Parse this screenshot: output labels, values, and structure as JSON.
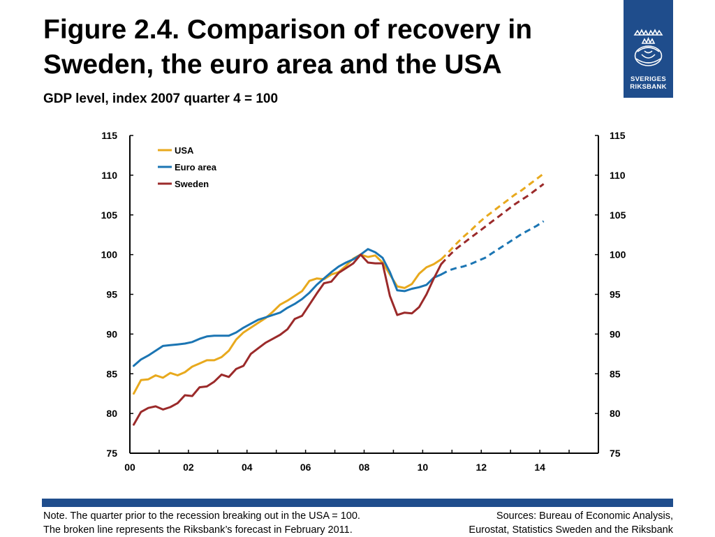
{
  "header": {
    "title": "Figure 2.4. Comparison of recovery in Sweden, the euro area and the USA",
    "subtitle": "GDP level, index 2007 quarter 4 = 100"
  },
  "logo": {
    "text": "SVERIGES\nRIKSBANK",
    "icon": "crown-emblem-icon"
  },
  "footer": {
    "note": "Note. The quarter prior to the recession breaking out in the USA = 100.\nThe broken line represents the Riksbank’s forecast in February 2011.",
    "sources": "Sources: Bureau of Economic Analysis,\nEurostat, Statistics Sweden and the Riksbank"
  },
  "colors": {
    "usa": "#e8a91d",
    "euro": "#1b75b3",
    "sweden": "#9b2a2a",
    "brand": "#1f4d8c"
  },
  "chart_data": {
    "type": "line",
    "title": "",
    "xlabel": "",
    "ylabel": "",
    "xlim": [
      2000,
      2016
    ],
    "ylim": [
      75,
      115
    ],
    "x_ticks": [
      {
        "value": 2000,
        "label": "00"
      },
      {
        "value": 2002,
        "label": "02"
      },
      {
        "value": 2004,
        "label": "04"
      },
      {
        "value": 2006,
        "label": "06"
      },
      {
        "value": 2008,
        "label": "08"
      },
      {
        "value": 2010,
        "label": "10"
      },
      {
        "value": 2012,
        "label": "12"
      },
      {
        "value": 2014,
        "label": "14"
      }
    ],
    "y_ticks": [
      75,
      80,
      85,
      90,
      95,
      100,
      105,
      110,
      115
    ],
    "grid": false,
    "legend_position": "top-left",
    "series": [
      {
        "name": "USA",
        "color": "#e8a91d",
        "actual": [
          [
            2000.13,
            82.5
          ],
          [
            2000.38,
            84.2
          ],
          [
            2000.63,
            84.3
          ],
          [
            2000.88,
            84.8
          ],
          [
            2001.13,
            84.5
          ],
          [
            2001.38,
            85.1
          ],
          [
            2001.63,
            84.8
          ],
          [
            2001.88,
            85.2
          ],
          [
            2002.13,
            85.9
          ],
          [
            2002.38,
            86.3
          ],
          [
            2002.63,
            86.7
          ],
          [
            2002.88,
            86.7
          ],
          [
            2003.13,
            87.1
          ],
          [
            2003.38,
            87.9
          ],
          [
            2003.63,
            89.3
          ],
          [
            2003.88,
            90.2
          ],
          [
            2004.13,
            90.8
          ],
          [
            2004.38,
            91.4
          ],
          [
            2004.63,
            92.0
          ],
          [
            2004.88,
            92.8
          ],
          [
            2005.13,
            93.7
          ],
          [
            2005.38,
            94.2
          ],
          [
            2005.63,
            94.8
          ],
          [
            2005.88,
            95.4
          ],
          [
            2006.13,
            96.7
          ],
          [
            2006.38,
            97.0
          ],
          [
            2006.63,
            96.9
          ],
          [
            2006.88,
            97.5
          ],
          [
            2007.13,
            97.8
          ],
          [
            2007.38,
            98.6
          ],
          [
            2007.63,
            99.5
          ],
          [
            2007.88,
            100.0
          ],
          [
            2008.13,
            99.7
          ],
          [
            2008.38,
            99.9
          ],
          [
            2008.63,
            99.0
          ],
          [
            2008.88,
            97.5
          ],
          [
            2009.13,
            96.0
          ],
          [
            2009.38,
            95.8
          ],
          [
            2009.63,
            96.3
          ],
          [
            2009.88,
            97.6
          ],
          [
            2010.13,
            98.4
          ],
          [
            2010.38,
            98.8
          ],
          [
            2010.63,
            99.4
          ]
        ],
        "forecast": [
          [
            2010.63,
            99.4
          ],
          [
            2010.88,
            100.3
          ],
          [
            2011.13,
            101.3
          ],
          [
            2011.38,
            102.2
          ],
          [
            2011.63,
            103.0
          ],
          [
            2011.88,
            103.9
          ],
          [
            2012.13,
            104.7
          ],
          [
            2012.38,
            105.4
          ],
          [
            2012.63,
            106.1
          ],
          [
            2012.88,
            106.8
          ],
          [
            2013.13,
            107.5
          ],
          [
            2013.38,
            108.1
          ],
          [
            2013.63,
            108.8
          ],
          [
            2013.88,
            109.5
          ],
          [
            2014.13,
            110.2
          ]
        ]
      },
      {
        "name": "Euro area",
        "color": "#1b75b3",
        "actual": [
          [
            2000.13,
            86.0
          ],
          [
            2000.38,
            86.8
          ],
          [
            2000.63,
            87.3
          ],
          [
            2000.88,
            87.9
          ],
          [
            2001.13,
            88.5
          ],
          [
            2001.38,
            88.6
          ],
          [
            2001.63,
            88.7
          ],
          [
            2001.88,
            88.8
          ],
          [
            2002.13,
            89.0
          ],
          [
            2002.38,
            89.4
          ],
          [
            2002.63,
            89.7
          ],
          [
            2002.88,
            89.8
          ],
          [
            2003.13,
            89.8
          ],
          [
            2003.38,
            89.8
          ],
          [
            2003.63,
            90.2
          ],
          [
            2003.88,
            90.8
          ],
          [
            2004.13,
            91.3
          ],
          [
            2004.38,
            91.8
          ],
          [
            2004.63,
            92.1
          ],
          [
            2004.88,
            92.4
          ],
          [
            2005.13,
            92.7
          ],
          [
            2005.38,
            93.3
          ],
          [
            2005.63,
            93.8
          ],
          [
            2005.88,
            94.4
          ],
          [
            2006.13,
            95.2
          ],
          [
            2006.38,
            96.2
          ],
          [
            2006.63,
            97.0
          ],
          [
            2006.88,
            97.8
          ],
          [
            2007.13,
            98.5
          ],
          [
            2007.38,
            99.0
          ],
          [
            2007.63,
            99.4
          ],
          [
            2007.88,
            100.0
          ],
          [
            2008.13,
            100.7
          ],
          [
            2008.38,
            100.3
          ],
          [
            2008.63,
            99.6
          ],
          [
            2008.88,
            97.8
          ],
          [
            2009.13,
            95.5
          ],
          [
            2009.38,
            95.4
          ],
          [
            2009.63,
            95.7
          ],
          [
            2009.88,
            95.9
          ],
          [
            2010.13,
            96.2
          ],
          [
            2010.38,
            97.1
          ],
          [
            2010.63,
            97.5
          ]
        ],
        "forecast": [
          [
            2010.63,
            97.5
          ],
          [
            2010.88,
            98.0
          ],
          [
            2011.13,
            98.3
          ],
          [
            2011.38,
            98.5
          ],
          [
            2011.63,
            98.8
          ],
          [
            2011.88,
            99.2
          ],
          [
            2012.13,
            99.6
          ],
          [
            2012.38,
            100.2
          ],
          [
            2012.63,
            100.8
          ],
          [
            2012.88,
            101.4
          ],
          [
            2013.13,
            102.0
          ],
          [
            2013.38,
            102.6
          ],
          [
            2013.63,
            103.1
          ],
          [
            2013.88,
            103.6
          ],
          [
            2014.13,
            104.2
          ]
        ]
      },
      {
        "name": "Sweden",
        "color": "#9b2a2a",
        "actual": [
          [
            2000.13,
            78.6
          ],
          [
            2000.38,
            80.2
          ],
          [
            2000.63,
            80.7
          ],
          [
            2000.88,
            80.9
          ],
          [
            2001.13,
            80.5
          ],
          [
            2001.38,
            80.8
          ],
          [
            2001.63,
            81.3
          ],
          [
            2001.88,
            82.3
          ],
          [
            2002.13,
            82.2
          ],
          [
            2002.38,
            83.3
          ],
          [
            2002.63,
            83.4
          ],
          [
            2002.88,
            84.0
          ],
          [
            2003.13,
            84.9
          ],
          [
            2003.38,
            84.6
          ],
          [
            2003.63,
            85.6
          ],
          [
            2003.88,
            86.0
          ],
          [
            2004.13,
            87.5
          ],
          [
            2004.38,
            88.2
          ],
          [
            2004.63,
            88.9
          ],
          [
            2004.88,
            89.4
          ],
          [
            2005.13,
            89.9
          ],
          [
            2005.38,
            90.6
          ],
          [
            2005.63,
            91.9
          ],
          [
            2005.88,
            92.3
          ],
          [
            2006.13,
            93.7
          ],
          [
            2006.38,
            95.1
          ],
          [
            2006.63,
            96.4
          ],
          [
            2006.88,
            96.6
          ],
          [
            2007.13,
            97.7
          ],
          [
            2007.38,
            98.3
          ],
          [
            2007.63,
            98.9
          ],
          [
            2007.88,
            100.0
          ],
          [
            2008.13,
            99.0
          ],
          [
            2008.38,
            98.9
          ],
          [
            2008.63,
            98.9
          ],
          [
            2008.88,
            94.8
          ],
          [
            2009.13,
            92.4
          ],
          [
            2009.38,
            92.7
          ],
          [
            2009.63,
            92.6
          ],
          [
            2009.88,
            93.4
          ],
          [
            2010.13,
            95.0
          ],
          [
            2010.38,
            97.0
          ],
          [
            2010.63,
            98.8
          ]
        ],
        "forecast": [
          [
            2010.63,
            98.8
          ],
          [
            2010.88,
            99.8
          ],
          [
            2011.13,
            100.7
          ],
          [
            2011.38,
            101.4
          ],
          [
            2011.63,
            102.1
          ],
          [
            2011.88,
            102.8
          ],
          [
            2012.13,
            103.5
          ],
          [
            2012.38,
            104.2
          ],
          [
            2012.63,
            104.9
          ],
          [
            2012.88,
            105.6
          ],
          [
            2013.13,
            106.3
          ],
          [
            2013.38,
            106.9
          ],
          [
            2013.63,
            107.5
          ],
          [
            2013.88,
            108.2
          ],
          [
            2014.13,
            108.9
          ]
        ]
      }
    ]
  }
}
